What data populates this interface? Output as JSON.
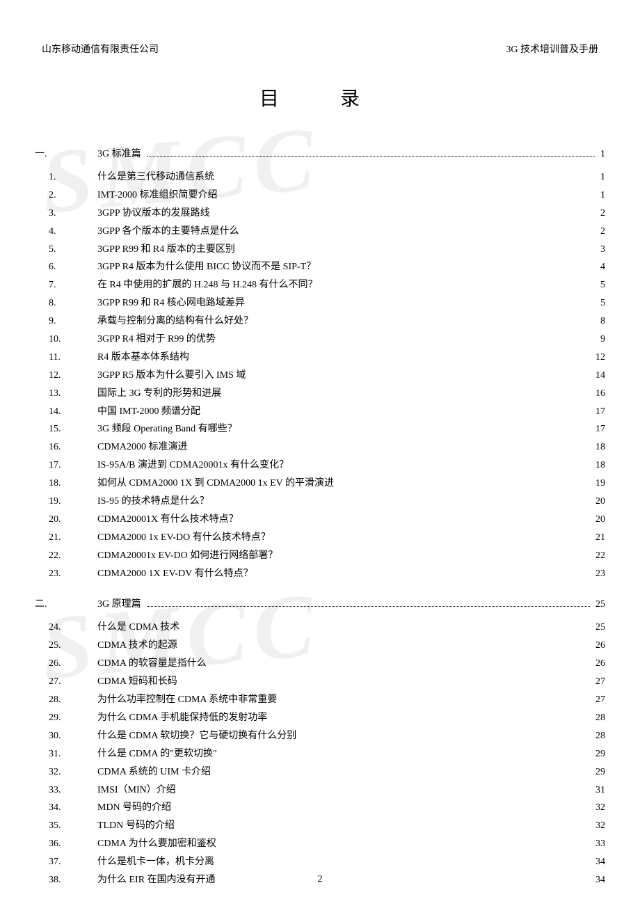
{
  "header": {
    "left": "山东移动通信有限责任公司",
    "right": "3G 技术培训普及手册"
  },
  "watermark_text": "SMCC",
  "title": "目　录",
  "page_number": "2",
  "font": {
    "body_family": "SimSun",
    "body_size_pt": 10.5,
    "title_size_pt": 22,
    "color": "#000000",
    "watermark_color": "rgba(0,0,0,0.06)"
  },
  "sections": [
    {
      "num": "一.",
      "title": "3G 标准篇",
      "page": "1",
      "items": [
        {
          "num": "1.",
          "title": "什么是第三代移动通信系统",
          "page": "1"
        },
        {
          "num": "2.",
          "title": "IMT-2000 标准组织简要介绍",
          "page": "1"
        },
        {
          "num": "3.",
          "title": "3GPP 协议版本的发展路线",
          "page": "2"
        },
        {
          "num": "4.",
          "title": "3GPP 各个版本的主要特点是什么",
          "page": "2"
        },
        {
          "num": "5.",
          "title": "3GPP R99 和 R4 版本的主要区别",
          "page": "3"
        },
        {
          "num": "6.",
          "title": "3GPP R4 版本为什么使用 BICC 协议而不是 SIP-T？",
          "page": "4"
        },
        {
          "num": "7.",
          "title": "在 R4 中使用的扩展的 H.248 与 H.248 有什么不同？",
          "page": "5"
        },
        {
          "num": "8.",
          "title": "3GPP R99 和 R4 核心网电路域差异",
          "page": "5"
        },
        {
          "num": "9.",
          "title": "承载与控制分离的结构有什么好处？",
          "page": "8"
        },
        {
          "num": "10.",
          "title": "3GPP R4 相对于 R99 的优势",
          "page": "9"
        },
        {
          "num": "11.",
          "title": "R4 版本基本体系结构",
          "page": "12"
        },
        {
          "num": "12.",
          "title": "3GPP R5 版本为什么要引入 IMS 域",
          "page": "14"
        },
        {
          "num": "13.",
          "title": "国际上 3G 专利的形势和进展",
          "page": "16"
        },
        {
          "num": "14.",
          "title": "中国 IMT-2000 频谱分配",
          "page": "17"
        },
        {
          "num": "15.",
          "title": "3G 频段 Operating Band 有哪些？",
          "page": "17"
        },
        {
          "num": "16.",
          "title": "CDMA2000 标准演进",
          "page": "18"
        },
        {
          "num": "17.",
          "title": "IS-95A/B 演进到 CDMA20001x 有什么变化？",
          "page": "18"
        },
        {
          "num": "18.",
          "title": "如何从 CDMA2000 1X 到 CDMA2000 1x EV 的平滑演进",
          "page": "19"
        },
        {
          "num": "19.",
          "title": "IS-95 的技术特点是什么？",
          "page": "20"
        },
        {
          "num": "20.",
          "title": "CDMA20001X 有什么技术特点？",
          "page": "20"
        },
        {
          "num": "21.",
          "title": "CDMA2000 1x EV-DO 有什么技术特点？",
          "page": "21"
        },
        {
          "num": "22.",
          "title": "CDMA20001x EV-DO 如何进行网络部署？",
          "page": "22"
        },
        {
          "num": "23.",
          "title": "CDMA2000 1X EV-DV 有什么特点？",
          "page": "23"
        }
      ]
    },
    {
      "num": "二.",
      "title": "3G 原理篇",
      "page": "25",
      "items": [
        {
          "num": "24.",
          "title": "什么是 CDMA 技术",
          "page": "25"
        },
        {
          "num": "25.",
          "title": "CDMA 技术的起源",
          "page": "26"
        },
        {
          "num": "26.",
          "title": "CDMA 的软容量是指什么",
          "page": "26"
        },
        {
          "num": "27.",
          "title": "CDMA 短码和长码",
          "page": "27"
        },
        {
          "num": "28.",
          "title": "为什么功率控制在 CDMA 系统中非常重要",
          "page": "27"
        },
        {
          "num": "29.",
          "title": "为什么 CDMA 手机能保持低的发射功率",
          "page": "28"
        },
        {
          "num": "30.",
          "title": "什么是 CDMA 软切换？它与硬切换有什么分别",
          "page": "28"
        },
        {
          "num": "31.",
          "title": "什么是 CDMA 的\"更软切换\"",
          "page": "29"
        },
        {
          "num": "32.",
          "title": "CDMA 系统的 UIM 卡介绍",
          "page": "29"
        },
        {
          "num": "33.",
          "title": "IMSI（MIN）介绍",
          "page": "31"
        },
        {
          "num": "34.",
          "title": "MDN 号码的介绍",
          "page": "32"
        },
        {
          "num": "35.",
          "title": "TLDN 号码的介绍",
          "page": "32"
        },
        {
          "num": "36.",
          "title": "CDMA 为什么要加密和鉴权",
          "page": "33"
        },
        {
          "num": "37.",
          "title": "什么是机卡一体，机卡分离",
          "page": "34"
        },
        {
          "num": "38.",
          "title": "为什么 EIR 在国内没有开通",
          "page": "34"
        }
      ]
    }
  ]
}
